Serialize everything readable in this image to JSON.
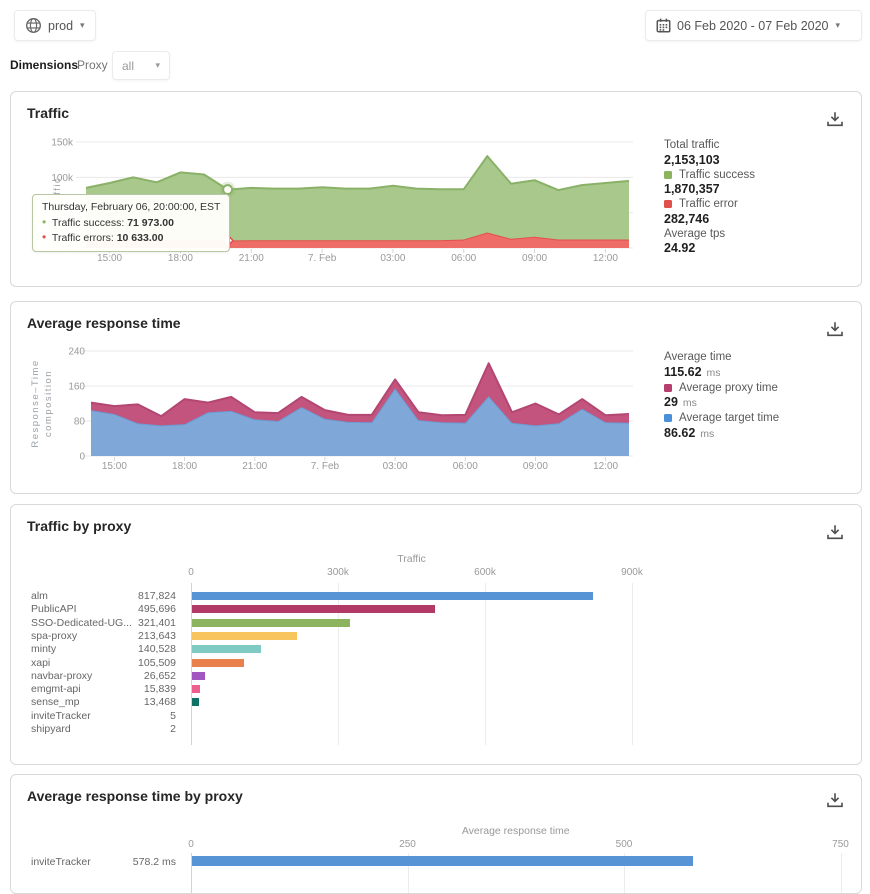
{
  "topbar": {
    "env_label": "prod",
    "date_range": "06 Feb 2020 - 07 Feb 2020"
  },
  "filters": {
    "dimensions_label": "Dimensions",
    "dimension_name": "Proxy",
    "dimension_value": "all"
  },
  "traffic_card": {
    "title": "Traffic",
    "tooltip": {
      "heading": "Thursday, February 06, 20:00:00, EST",
      "rows": [
        {
          "label": "Traffic success:",
          "value": "71 973.00",
          "color": "#8cb45e"
        },
        {
          "label": "Traffic errors:",
          "value": "10 633.00",
          "color": "#e2504c"
        }
      ]
    },
    "stats": [
      {
        "label": "Total traffic",
        "value": "2,153,103"
      },
      {
        "label": "Traffic success",
        "value": "1,870,357",
        "swatch": "#8cb45e"
      },
      {
        "label": "Traffic error",
        "value": "282,746",
        "swatch": "#e2504c"
      },
      {
        "label": "Average tps",
        "value": "24.92"
      }
    ]
  },
  "response_card": {
    "title": "Average response time",
    "stats": [
      {
        "label": "Average time",
        "value": "115.62",
        "unit": "ms"
      },
      {
        "label": "Average proxy time",
        "value": "29",
        "unit": "ms",
        "swatch": "#b73f6d"
      },
      {
        "label": "Average target time",
        "value": "86.62",
        "unit": "ms",
        "swatch": "#4a90d9"
      }
    ]
  },
  "traffic_by_proxy_card": {
    "title": "Traffic by proxy"
  },
  "response_by_proxy_card": {
    "title": "Average response time by proxy"
  },
  "chart_data": [
    {
      "id": "traffic",
      "type": "area",
      "stacked": true,
      "title": "Traffic",
      "ylabel": "Traffic",
      "ylim": [
        0,
        150000
      ],
      "yticks": [
        {
          "v": 150000,
          "label": "150k"
        },
        {
          "v": 100000,
          "label": "100k"
        },
        {
          "v": 50000,
          "label": "50k"
        },
        {
          "v": 0,
          "label": "0"
        }
      ],
      "xticks": [
        {
          "i": 1,
          "label": "15:00"
        },
        {
          "i": 4,
          "label": "18:00"
        },
        {
          "i": 7,
          "label": "21:00"
        },
        {
          "i": 10,
          "label": "7. Feb"
        },
        {
          "i": 13,
          "label": "03:00"
        },
        {
          "i": 16,
          "label": "06:00"
        },
        {
          "i": 19,
          "label": "09:00"
        },
        {
          "i": 22,
          "label": "12:00"
        }
      ],
      "hover_index": 6,
      "series": [
        {
          "name": "Traffic errors",
          "line": "#e2504c",
          "fill": "#ef6d68",
          "values": [
            11000,
            13000,
            12000,
            11000,
            12000,
            11000,
            10633,
            11000,
            11000,
            11000,
            11000,
            11000,
            11000,
            11000,
            11000,
            11000,
            12000,
            22000,
            13000,
            16000,
            12000,
            12000,
            12000,
            12000
          ]
        },
        {
          "name": "Traffic success",
          "line": "#8ab168",
          "fill": "#a9c88c",
          "values": [
            74000,
            79000,
            88000,
            82000,
            95000,
            93000,
            71973,
            74000,
            73000,
            73000,
            75000,
            73000,
            73000,
            77000,
            73000,
            72000,
            71000,
            108000,
            78000,
            80000,
            70000,
            77000,
            80000,
            83000
          ]
        }
      ]
    },
    {
      "id": "response",
      "type": "area",
      "stacked": true,
      "title": "Average response time",
      "ylabel_lines": [
        "Response–Time",
        "composition"
      ],
      "ylim": [
        0,
        240
      ],
      "yticks": [
        {
          "v": 240,
          "label": "240"
        },
        {
          "v": 160,
          "label": "160"
        },
        {
          "v": 80,
          "label": "80"
        },
        {
          "v": 0,
          "label": "0"
        }
      ],
      "xticks": [
        {
          "i": 1,
          "label": "15:00"
        },
        {
          "i": 4,
          "label": "18:00"
        },
        {
          "i": 7,
          "label": "21:00"
        },
        {
          "i": 10,
          "label": "7. Feb"
        },
        {
          "i": 13,
          "label": "03:00"
        },
        {
          "i": 16,
          "label": "06:00"
        },
        {
          "i": 19,
          "label": "09:00"
        },
        {
          "i": 22,
          "label": "12:00"
        }
      ],
      "series": [
        {
          "name": "Average target time",
          "line": "#6b9bd2",
          "fill": "#7fa8d9",
          "values": [
            105,
            96,
            75,
            70,
            73,
            100,
            103,
            84,
            80,
            112,
            85,
            78,
            77,
            155,
            82,
            77,
            76,
            137,
            76,
            70,
            75,
            108,
            77,
            76
          ]
        },
        {
          "name": "Average proxy time",
          "line": "#b34672",
          "fill": "#c2547e",
          "values": [
            17,
            18,
            43,
            21,
            57,
            22,
            32,
            16,
            18,
            23,
            20,
            16,
            17,
            20,
            18,
            16,
            18,
            75,
            24,
            50,
            20,
            22,
            16,
            20
          ]
        }
      ]
    },
    {
      "id": "traffic_by_proxy",
      "type": "bar",
      "orientation": "horizontal",
      "xlabel": "Traffic",
      "xlim": [
        0,
        900000
      ],
      "xticks": [
        {
          "v": 0,
          "label": "0"
        },
        {
          "v": 300000,
          "label": "300k"
        },
        {
          "v": 600000,
          "label": "600k"
        },
        {
          "v": 900000,
          "label": "900k"
        }
      ],
      "rows": [
        {
          "label": "alm",
          "value": 817824,
          "value_label": "817,824",
          "color": "#5694d6"
        },
        {
          "label": "PublicAPI",
          "value": 495696,
          "value_label": "495,696",
          "color": "#b13a66"
        },
        {
          "label": "SSO-Dedicated-UG...",
          "value": 321401,
          "value_label": "321,401",
          "color": "#8cb45e"
        },
        {
          "label": "spa-proxy",
          "value": 213643,
          "value_label": "213,643",
          "color": "#f7c45e"
        },
        {
          "label": "minty",
          "value": 140528,
          "value_label": "140,528",
          "color": "#7fcbc4"
        },
        {
          "label": "xapi",
          "value": 105509,
          "value_label": "105,509",
          "color": "#e8814b"
        },
        {
          "label": "navbar-proxy",
          "value": 26652,
          "value_label": "26,652",
          "color": "#a256c0"
        },
        {
          "label": "emgmt-api",
          "value": 15839,
          "value_label": "15,839",
          "color": "#ee5f8e"
        },
        {
          "label": "sense_mp",
          "value": 13468,
          "value_label": "13,468",
          "color": "#0e7163"
        },
        {
          "label": "inviteTracker",
          "value": 5,
          "value_label": "5",
          "color": "#5694d6"
        },
        {
          "label": "shipyard",
          "value": 2,
          "value_label": "2",
          "color": "#5694d6"
        }
      ]
    },
    {
      "id": "response_by_proxy",
      "type": "bar",
      "orientation": "horizontal",
      "xlabel": "Average response time",
      "xlim": [
        0,
        750
      ],
      "xticks": [
        {
          "v": 0,
          "label": "0"
        },
        {
          "v": 250,
          "label": "250"
        },
        {
          "v": 500,
          "label": "500"
        },
        {
          "v": 750,
          "label": "750"
        }
      ],
      "rows": [
        {
          "label": "inviteTracker",
          "value": 578.2,
          "value_label": "578.2 ms",
          "color": "#5694d6"
        }
      ]
    }
  ]
}
